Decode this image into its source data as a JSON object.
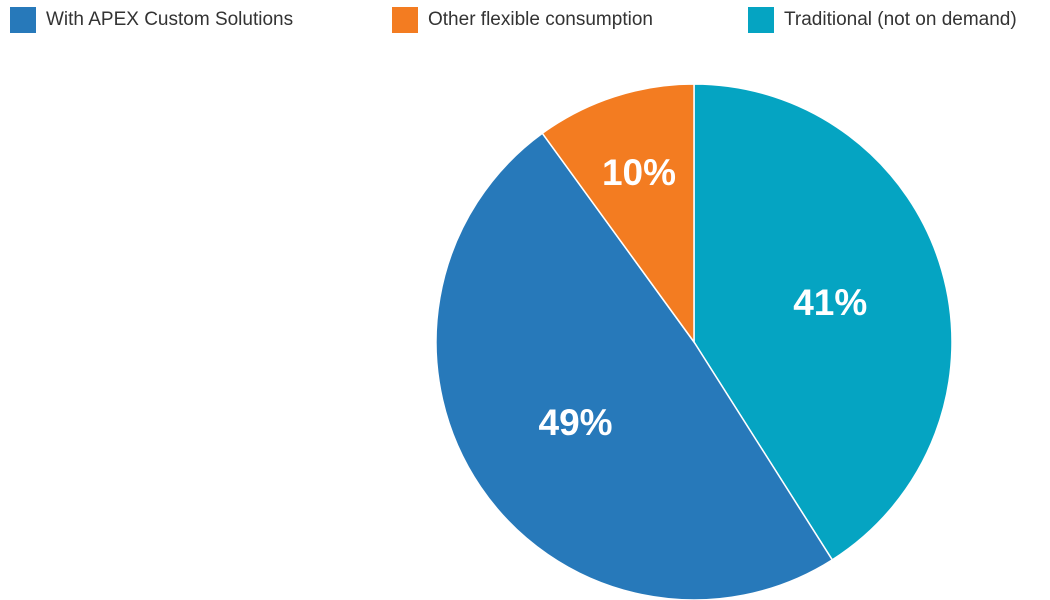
{
  "chart_data": {
    "type": "pie",
    "title": "",
    "legend_placement": "top",
    "slices": [
      {
        "name": "With APEX Custom Solutions",
        "value": 49,
        "label": "49%",
        "color": "#2779BA"
      },
      {
        "name": "Other flexible consumption",
        "value": 10,
        "label": "10%",
        "color": "#F37C21"
      },
      {
        "name": "Traditional (not on demand)",
        "value": 41,
        "label": "41%",
        "color": "#05A4C2"
      }
    ]
  }
}
